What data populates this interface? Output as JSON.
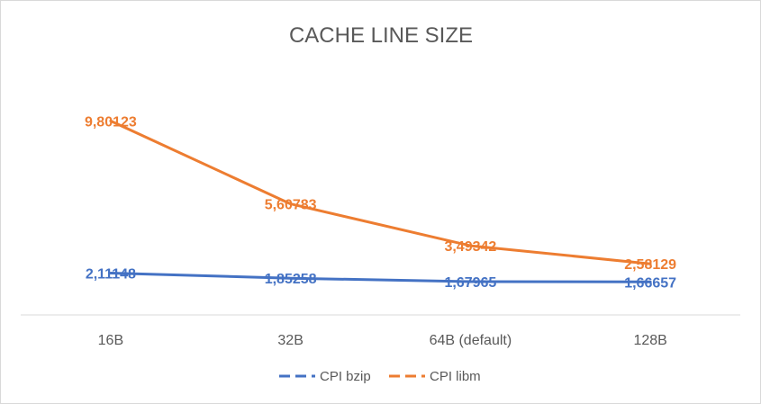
{
  "chart_data": {
    "type": "line",
    "title": "CACHE LINE SIZE",
    "categories": [
      "16B",
      "32B",
      "64B (default)",
      "128B"
    ],
    "series": [
      {
        "name": "CPI bzip",
        "color": "#4472C4",
        "values": [
          2.11148,
          1.85258,
          1.67965,
          1.66657
        ],
        "labels": [
          "2,11148",
          "1,85258",
          "1,67965",
          "1,66657"
        ]
      },
      {
        "name": "CPI libm",
        "color": "#ED7D31",
        "values": [
          9.80123,
          5.60783,
          3.49342,
          2.58129
        ],
        "labels": [
          "9,80123",
          "5,60783",
          "3,49342",
          "2,58129"
        ]
      }
    ],
    "ylim": [
      0,
      12
    ],
    "legend": "bottom",
    "grid": false
  }
}
